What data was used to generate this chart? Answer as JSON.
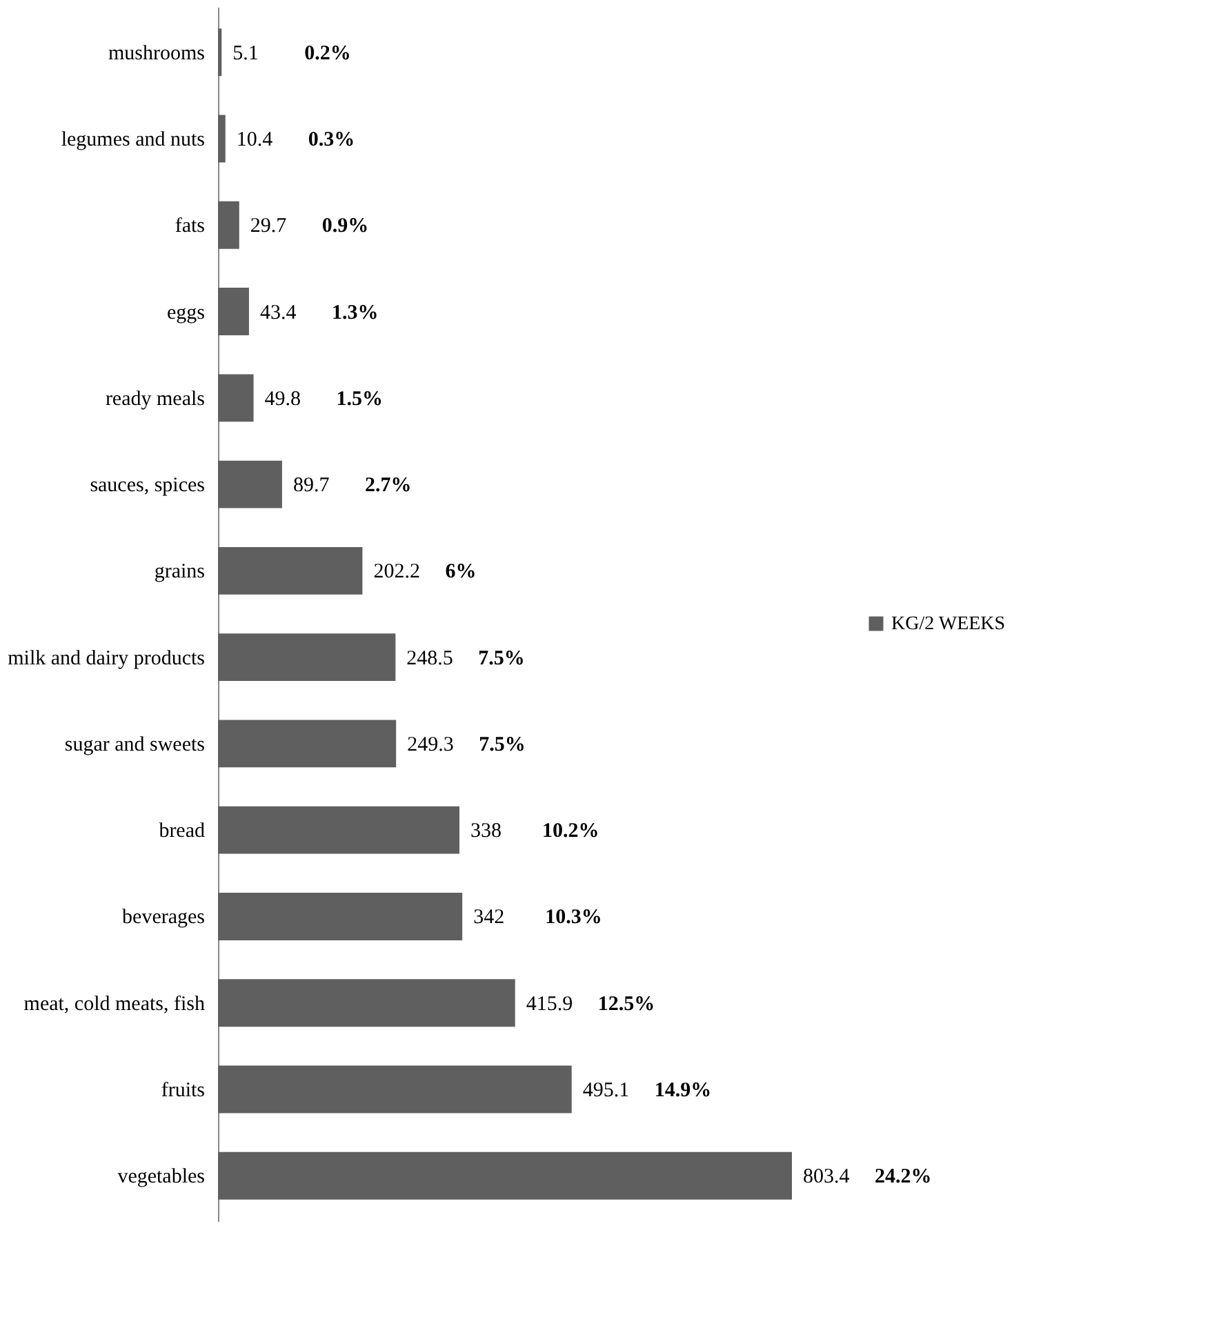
{
  "chart_data": {
    "type": "bar",
    "orientation": "horizontal",
    "categories": [
      "mushrooms",
      "legumes and nuts",
      "fats",
      "eggs",
      "ready meals",
      "sauces, spices",
      "grains",
      "milk and dairy products",
      "sugar and sweets",
      "bread",
      "beverages",
      "meat, cold meats, fish",
      "fruits",
      "vegetables"
    ],
    "series": [
      {
        "name": "KG/2 WEEKS",
        "color": "#5f5f5f",
        "values": [
          5.1,
          10.4,
          29.7,
          43.4,
          49.8,
          89.7,
          202.2,
          248.5,
          249.3,
          338,
          342,
          415.9,
          495.1,
          803.4
        ]
      }
    ],
    "data_labels": true,
    "legend": "right",
    "grid": false,
    "annotations": [
      "0.2%",
      "0.3%",
      "0.9%",
      "1.3%",
      "1.5%",
      "2.7%",
      "6%",
      "7.5%",
      "7.5%",
      "10.2%",
      "10.3%",
      "12.5%",
      "14.9%",
      "24.2%"
    ]
  }
}
